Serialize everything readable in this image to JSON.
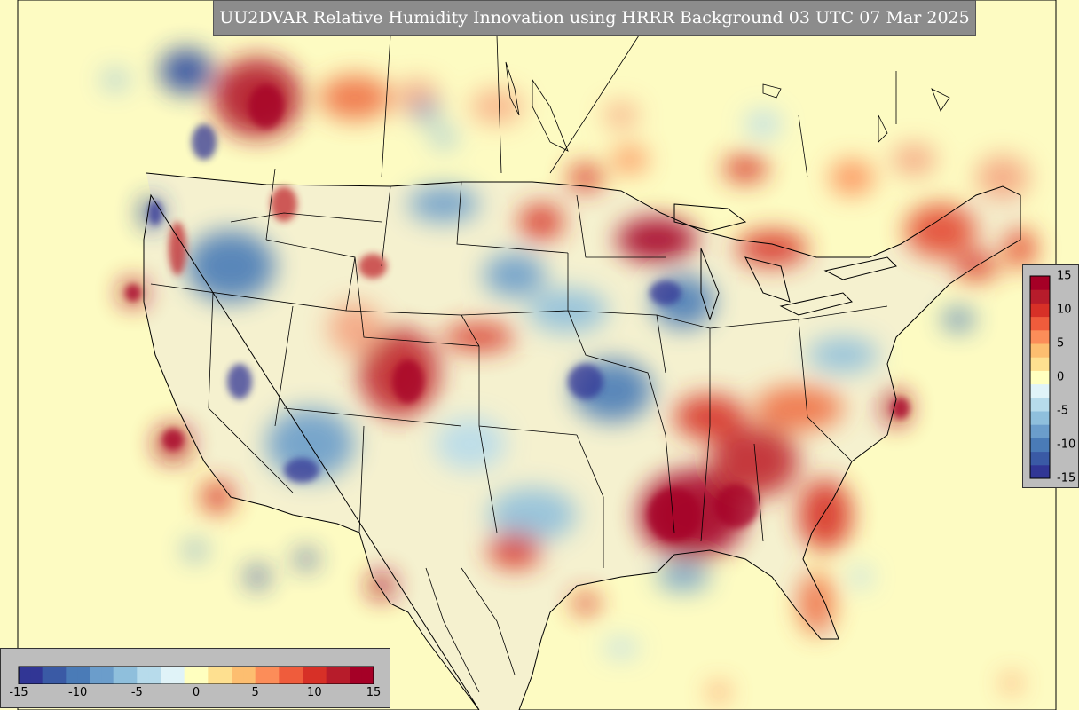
{
  "title": "UU2DVAR Relative Humidity Innovation using HRRR Background 03 UTC 07 Mar 2025",
  "colorbar": {
    "min": -15,
    "max": 15,
    "ticks_horizontal": [
      "-15",
      "-10",
      "-5",
      "0",
      "5",
      "10",
      "15"
    ],
    "ticks_vertical": [
      "15",
      "10",
      "5",
      "0",
      "-5",
      "-10",
      "-15"
    ],
    "colors": [
      "#313695",
      "#3a5aa5",
      "#4a7bb7",
      "#6b9dcb",
      "#8fbfdc",
      "#b7dbeb",
      "#e0f3f8",
      "#ffffbf",
      "#fee090",
      "#fdbe70",
      "#fc8d59",
      "#ef5c3c",
      "#d73027",
      "#b71c2b",
      "#a50026"
    ]
  },
  "map": {
    "ocean_color": "#fdfbc2",
    "land_color": "#f7f4d0",
    "border_color": "#000000"
  }
}
